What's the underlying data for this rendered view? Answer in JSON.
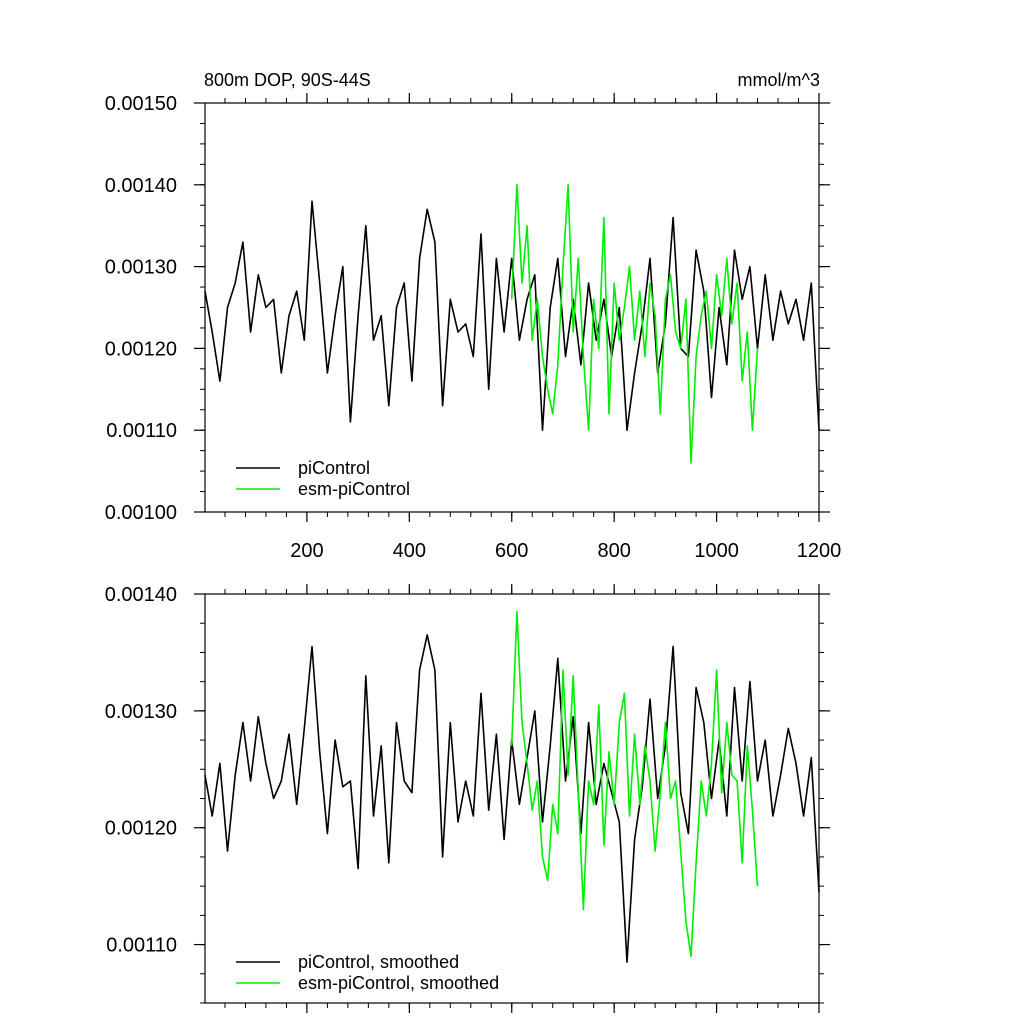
{
  "colors": {
    "picontrol": "#000000",
    "esm_picontrol": "#00ee00",
    "axis": "#000000"
  },
  "chart_data": [
    {
      "type": "line",
      "title": "800m DOP, 90S-44S",
      "units": "mmol/m^3",
      "xlim": [
        1,
        1200
      ],
      "ylim": [
        0.001,
        0.0015
      ],
      "xticks": [
        200,
        400,
        600,
        800,
        1000,
        1200
      ],
      "xtick_labels": [
        "200",
        "400",
        "600",
        "800",
        "1000",
        "1200"
      ],
      "yticks": [
        0.001,
        0.0011,
        0.0012,
        0.0013,
        0.0014,
        0.0015
      ],
      "ytick_labels": [
        "0.00100",
        "0.00110",
        "0.00120",
        "0.00130",
        "0.00140",
        "0.00150"
      ],
      "legend_position": "bottom-left",
      "series": [
        {
          "name": "piControl",
          "color_key": "picontrol",
          "x": [
            1,
            15,
            30,
            45,
            60,
            75,
            90,
            105,
            120,
            135,
            150,
            165,
            180,
            195,
            210,
            225,
            240,
            255,
            270,
            285,
            300,
            315,
            330,
            345,
            360,
            375,
            390,
            405,
            420,
            435,
            450,
            465,
            480,
            495,
            510,
            525,
            540,
            555,
            570,
            585,
            600,
            615,
            630,
            645,
            660,
            675,
            690,
            705,
            720,
            735,
            750,
            765,
            780,
            795,
            810,
            825,
            840,
            855,
            870,
            885,
            900,
            915,
            930,
            945,
            960,
            975,
            990,
            1005,
            1020,
            1035,
            1050,
            1065,
            1080,
            1095,
            1110,
            1125,
            1140,
            1155,
            1170,
            1185,
            1200
          ],
          "y": [
            0.00127,
            0.00122,
            0.00116,
            0.00125,
            0.00128,
            0.00133,
            0.00122,
            0.00129,
            0.00125,
            0.00126,
            0.00117,
            0.00124,
            0.00127,
            0.00121,
            0.00138,
            0.00128,
            0.00117,
            0.00124,
            0.0013,
            0.00111,
            0.00124,
            0.00135,
            0.00121,
            0.00124,
            0.00113,
            0.00125,
            0.00128,
            0.00116,
            0.00131,
            0.00137,
            0.00133,
            0.00113,
            0.00126,
            0.00122,
            0.00123,
            0.00119,
            0.00134,
            0.00115,
            0.00131,
            0.00122,
            0.00131,
            0.00121,
            0.00126,
            0.00129,
            0.0011,
            0.00125,
            0.00131,
            0.00119,
            0.00126,
            0.00118,
            0.00128,
            0.00121,
            0.00126,
            0.00119,
            0.00125,
            0.0011,
            0.00117,
            0.00123,
            0.00131,
            0.00117,
            0.00123,
            0.00136,
            0.0012,
            0.00119,
            0.00132,
            0.00127,
            0.00114,
            0.00125,
            0.00118,
            0.00132,
            0.00126,
            0.0013,
            0.0012,
            0.00129,
            0.00121,
            0.00127,
            0.00123,
            0.00126,
            0.00121,
            0.00128,
            0.0011
          ]
        },
        {
          "name": "esm-piControl",
          "color_key": "esm_picontrol",
          "x": [
            600,
            610,
            620,
            630,
            640,
            650,
            660,
            670,
            680,
            690,
            700,
            710,
            720,
            730,
            740,
            750,
            760,
            770,
            780,
            790,
            800,
            810,
            820,
            830,
            840,
            850,
            860,
            870,
            880,
            890,
            900,
            910,
            920,
            930,
            940,
            950,
            960,
            970,
            980,
            990,
            1000,
            1010,
            1020,
            1030,
            1040,
            1050,
            1060,
            1070,
            1080
          ],
          "y": [
            0.00126,
            0.0014,
            0.00128,
            0.00135,
            0.00121,
            0.00126,
            0.00119,
            0.00115,
            0.00112,
            0.00118,
            0.0013,
            0.0014,
            0.00122,
            0.00131,
            0.00119,
            0.0011,
            0.00126,
            0.0012,
            0.00136,
            0.00112,
            0.00128,
            0.00121,
            0.00125,
            0.0013,
            0.00121,
            0.00127,
            0.00119,
            0.00128,
            0.00124,
            0.00112,
            0.00126,
            0.00129,
            0.00122,
            0.0012,
            0.00126,
            0.00106,
            0.00119,
            0.00124,
            0.00127,
            0.0012,
            0.00129,
            0.00124,
            0.00131,
            0.00123,
            0.00128,
            0.00116,
            0.00122,
            0.0011,
            0.0012
          ]
        }
      ]
    },
    {
      "type": "line",
      "title": "",
      "units": "",
      "xlim": [
        1,
        1200
      ],
      "ylim": [
        0.00105,
        0.0014
      ],
      "xticks": [
        200,
        400,
        600,
        800,
        1000,
        1200
      ],
      "xtick_labels": [
        "",
        "",
        "",
        "",
        "",
        ""
      ],
      "yticks": [
        0.0011,
        0.0012,
        0.0013,
        0.0014
      ],
      "ytick_labels": [
        "0.00110",
        "0.00120",
        "0.00130",
        "0.00140"
      ],
      "legend_position": "bottom-left",
      "series": [
        {
          "name": "piControl, smoothed",
          "color_key": "picontrol",
          "x": [
            1,
            15,
            30,
            45,
            60,
            75,
            90,
            105,
            120,
            135,
            150,
            165,
            180,
            195,
            210,
            225,
            240,
            255,
            270,
            285,
            300,
            315,
            330,
            345,
            360,
            375,
            390,
            405,
            420,
            435,
            450,
            465,
            480,
            495,
            510,
            525,
            540,
            555,
            570,
            585,
            600,
            615,
            630,
            645,
            660,
            675,
            690,
            705,
            720,
            735,
            750,
            765,
            780,
            795,
            810,
            825,
            840,
            855,
            870,
            885,
            900,
            915,
            930,
            945,
            960,
            975,
            990,
            1005,
            1020,
            1035,
            1050,
            1065,
            1080,
            1095,
            1110,
            1125,
            1140,
            1155,
            1170,
            1185,
            1200
          ],
          "y": [
            0.001245,
            0.00121,
            0.001255,
            0.00118,
            0.001245,
            0.00129,
            0.00124,
            0.001295,
            0.001255,
            0.001225,
            0.00124,
            0.00128,
            0.00122,
            0.001285,
            0.001355,
            0.001265,
            0.001195,
            0.001275,
            0.001235,
            0.00124,
            0.001165,
            0.00133,
            0.00121,
            0.00127,
            0.00117,
            0.00129,
            0.00124,
            0.00123,
            0.001335,
            0.001365,
            0.001335,
            0.001175,
            0.00129,
            0.001205,
            0.00124,
            0.00121,
            0.001315,
            0.001215,
            0.00128,
            0.00119,
            0.001275,
            0.00122,
            0.00126,
            0.0013,
            0.001205,
            0.00127,
            0.001345,
            0.00124,
            0.001295,
            0.001195,
            0.00129,
            0.00122,
            0.001255,
            0.00123,
            0.001205,
            0.001085,
            0.00119,
            0.001235,
            0.00131,
            0.001225,
            0.00127,
            0.001355,
            0.00123,
            0.001195,
            0.00132,
            0.00129,
            0.001225,
            0.001275,
            0.00121,
            0.00132,
            0.00124,
            0.001325,
            0.00124,
            0.001275,
            0.00121,
            0.001245,
            0.001285,
            0.001255,
            0.00121,
            0.00126,
            0.001145
          ]
        },
        {
          "name": "esm-piControl, smoothed",
          "color_key": "esm_picontrol",
          "x": [
            600,
            610,
            620,
            630,
            640,
            650,
            660,
            670,
            680,
            690,
            700,
            710,
            720,
            730,
            740,
            750,
            760,
            770,
            780,
            790,
            800,
            810,
            820,
            830,
            840,
            850,
            860,
            870,
            880,
            890,
            900,
            910,
            920,
            930,
            940,
            950,
            960,
            970,
            980,
            990,
            1000,
            1010,
            1020,
            1030,
            1040,
            1050,
            1060,
            1070,
            1080
          ],
          "y": [
            0.00127,
            0.001385,
            0.00129,
            0.001255,
            0.001215,
            0.00124,
            0.001175,
            0.001155,
            0.00122,
            0.001195,
            0.001335,
            0.001245,
            0.00133,
            0.00123,
            0.00113,
            0.00124,
            0.00122,
            0.001305,
            0.001185,
            0.001265,
            0.00122,
            0.00129,
            0.001315,
            0.00121,
            0.00128,
            0.00122,
            0.00127,
            0.00124,
            0.00118,
            0.00123,
            0.00129,
            0.001225,
            0.00124,
            0.00118,
            0.00112,
            0.00109,
            0.00117,
            0.00124,
            0.00121,
            0.001255,
            0.001335,
            0.00123,
            0.00129,
            0.001245,
            0.00124,
            0.00117,
            0.00127,
            0.001215,
            0.00115
          ]
        }
      ]
    }
  ]
}
